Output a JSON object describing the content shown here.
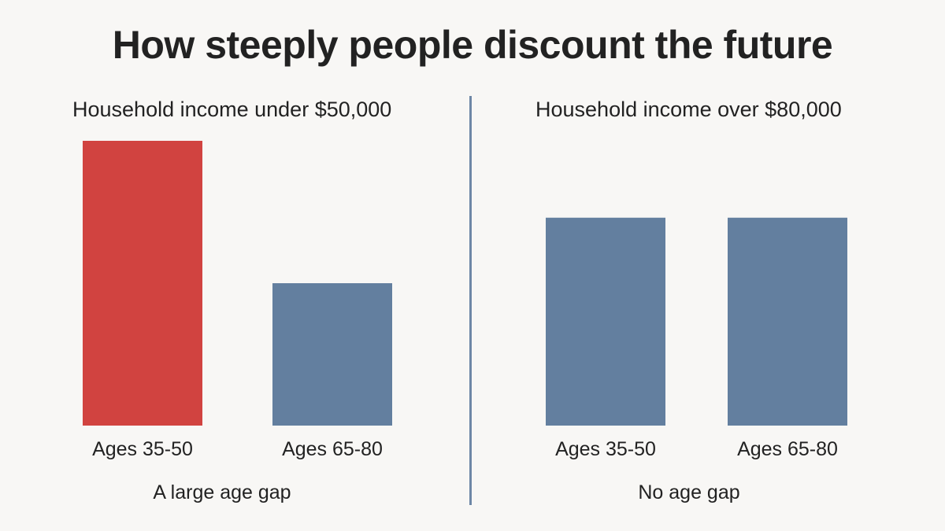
{
  "title": "How steeply people discount the future",
  "colors": {
    "highlight": "#d14340",
    "base": "#637f9f",
    "divider": "#6e87a6"
  },
  "chart_data": [
    {
      "type": "bar",
      "title": "Household income under $50,000",
      "categories": [
        "Ages 35-50",
        "Ages 65-80"
      ],
      "values": [
        100,
        50
      ],
      "colors": [
        "#d14340",
        "#637f9f"
      ],
      "caption": "A large age gap",
      "ylim": [
        0,
        100
      ]
    },
    {
      "type": "bar",
      "title": "Household income over $80,000",
      "categories": [
        "Ages 35-50",
        "Ages 65-80"
      ],
      "values": [
        73,
        73
      ],
      "colors": [
        "#637f9f",
        "#637f9f"
      ],
      "caption": "No age gap",
      "ylim": [
        0,
        100
      ]
    }
  ]
}
